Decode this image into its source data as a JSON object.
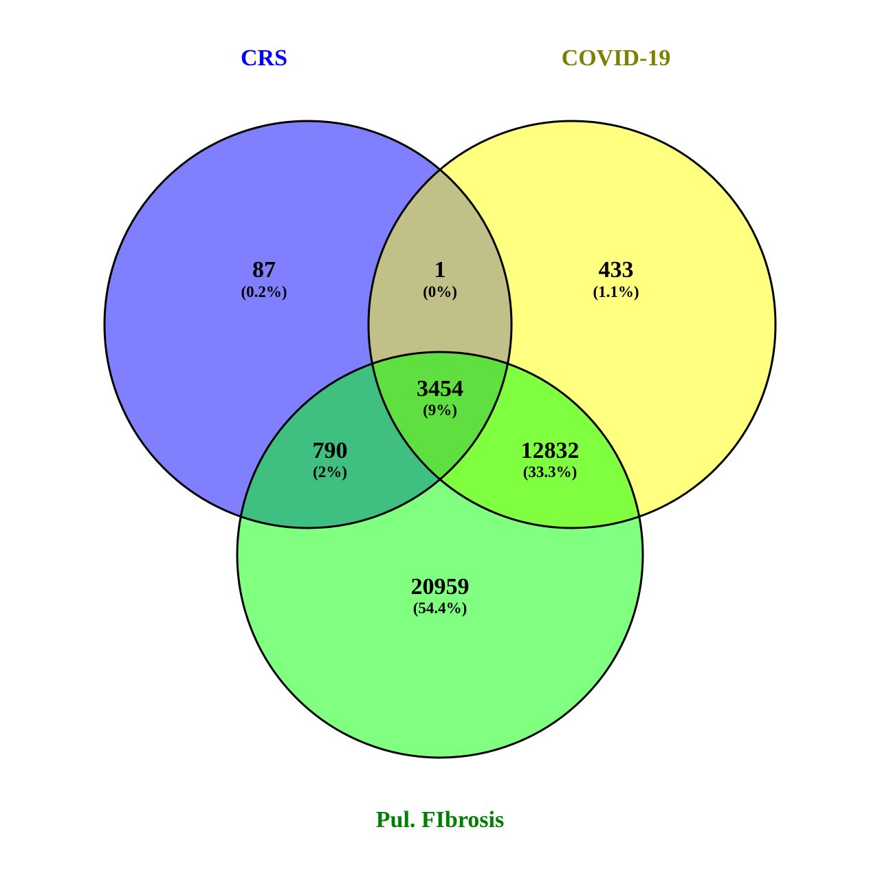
{
  "sets": [
    {
      "key": "crs",
      "name": "CRS",
      "color": "#0000ff",
      "fill": "#8080ff"
    },
    {
      "key": "covid",
      "name": "COVID-19",
      "color": "#808000",
      "fill": "#ffff80"
    },
    {
      "key": "pf",
      "name": "Pul. FIbrosis",
      "color": "#008000",
      "fill": "#80ff80"
    }
  ],
  "regions": {
    "crs_only": {
      "count": "87",
      "percent": "(0.2%)",
      "fill": "#8080ff"
    },
    "covid_only": {
      "count": "433",
      "percent": "(1.1%)",
      "fill": "#ffff80"
    },
    "pf_only": {
      "count": "20959",
      "percent": "(54.4%)",
      "fill": "#80ff80"
    },
    "crs_covid": {
      "count": "1",
      "percent": "(0%)",
      "fill": "#c0c088"
    },
    "crs_pf": {
      "count": "790",
      "percent": "(2%)",
      "fill": "#40c080"
    },
    "covid_pf": {
      "count": "12832",
      "percent": "(33.3%)",
      "fill": "#80ff40"
    },
    "all": {
      "count": "3454",
      "percent": "(9%)",
      "fill": "#60e040"
    }
  },
  "outline_color": "#000000"
}
